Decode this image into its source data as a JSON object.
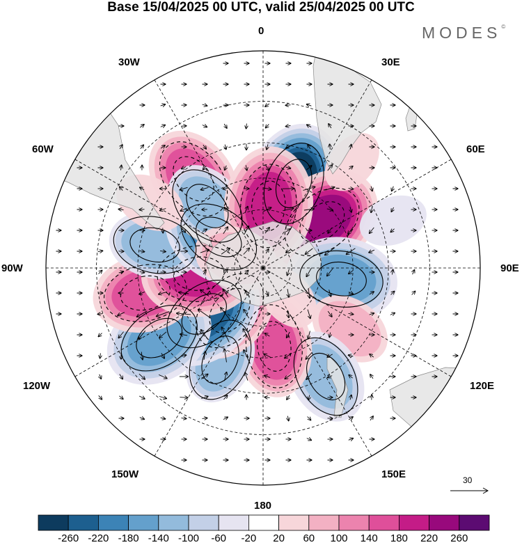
{
  "title": "Base 15/04/2025 00 UTC, valid 25/04/2025 00 UTC",
  "brand": "MODES",
  "brand_mark": "©",
  "longitude_labels": {
    "lon_0": "0",
    "lon_30e": "30E",
    "lon_60e": "60E",
    "lon_90e": "90E",
    "lon_120e": "120E",
    "lon_150e": "150E",
    "lon_180": "180",
    "lon_150w": "150W",
    "lon_120w": "120W",
    "lon_90w": "90W",
    "lon_60w": "60W",
    "lon_30w": "30W"
  },
  "reference_vector": {
    "value": "30"
  },
  "colorbar": {
    "labels": [
      "-260",
      "-220",
      "-180",
      "-140",
      "-100",
      "-60",
      "-20",
      "20",
      "60",
      "100",
      "140",
      "180",
      "220",
      "260"
    ],
    "colors": [
      "#0d3b5e",
      "#1d5f8f",
      "#3c83b6",
      "#64a0cc",
      "#93bbdc",
      "#c3d0e7",
      "#e6e4f1",
      "#ffffff",
      "#f7d6da",
      "#f3b1c3",
      "#ec83ae",
      "#df4f9a",
      "#c41c87",
      "#98097c",
      "#5c0b72"
    ]
  },
  "anomaly_centers": [
    {
      "lon": 20,
      "lat": -45,
      "value": -260
    },
    {
      "lon": 52,
      "lat": -52,
      "value": 230
    },
    {
      "lon": 98,
      "lat": -50,
      "value": -170
    },
    {
      "lon": 125,
      "lat": -38,
      "value": 80
    },
    {
      "lon": 150,
      "lat": -30,
      "value": -120
    },
    {
      "lon": 172,
      "lat": -50,
      "value": 140
    },
    {
      "lon": 205,
      "lat": -40,
      "value": -100
    },
    {
      "lon": 218,
      "lat": -62,
      "value": 150
    },
    {
      "lon": 232,
      "lat": -52,
      "value": -220
    },
    {
      "lon": 236,
      "lat": -30,
      "value": -170
    },
    {
      "lon": 258,
      "lat": -32,
      "value": 150
    },
    {
      "lon": 265,
      "lat": -57,
      "value": 180
    },
    {
      "lon": 282,
      "lat": -36,
      "value": -110
    },
    {
      "lon": 322,
      "lat": -35,
      "value": 150
    },
    {
      "lon": 305,
      "lat": -62,
      "value": -180
    },
    {
      "lon": 318,
      "lat": -48,
      "value": -110
    },
    {
      "lon": 5,
      "lat": -58,
      "value": 190
    },
    {
      "lon": 290,
      "lat": -75,
      "value": 90
    },
    {
      "lon": 300,
      "lat": -28,
      "value": 50
    },
    {
      "lon": 140,
      "lat": -70,
      "value": 40
    },
    {
      "lon": 70,
      "lat": -25,
      "value": -40
    },
    {
      "lon": 40,
      "lat": -25,
      "value": 30
    }
  ]
}
